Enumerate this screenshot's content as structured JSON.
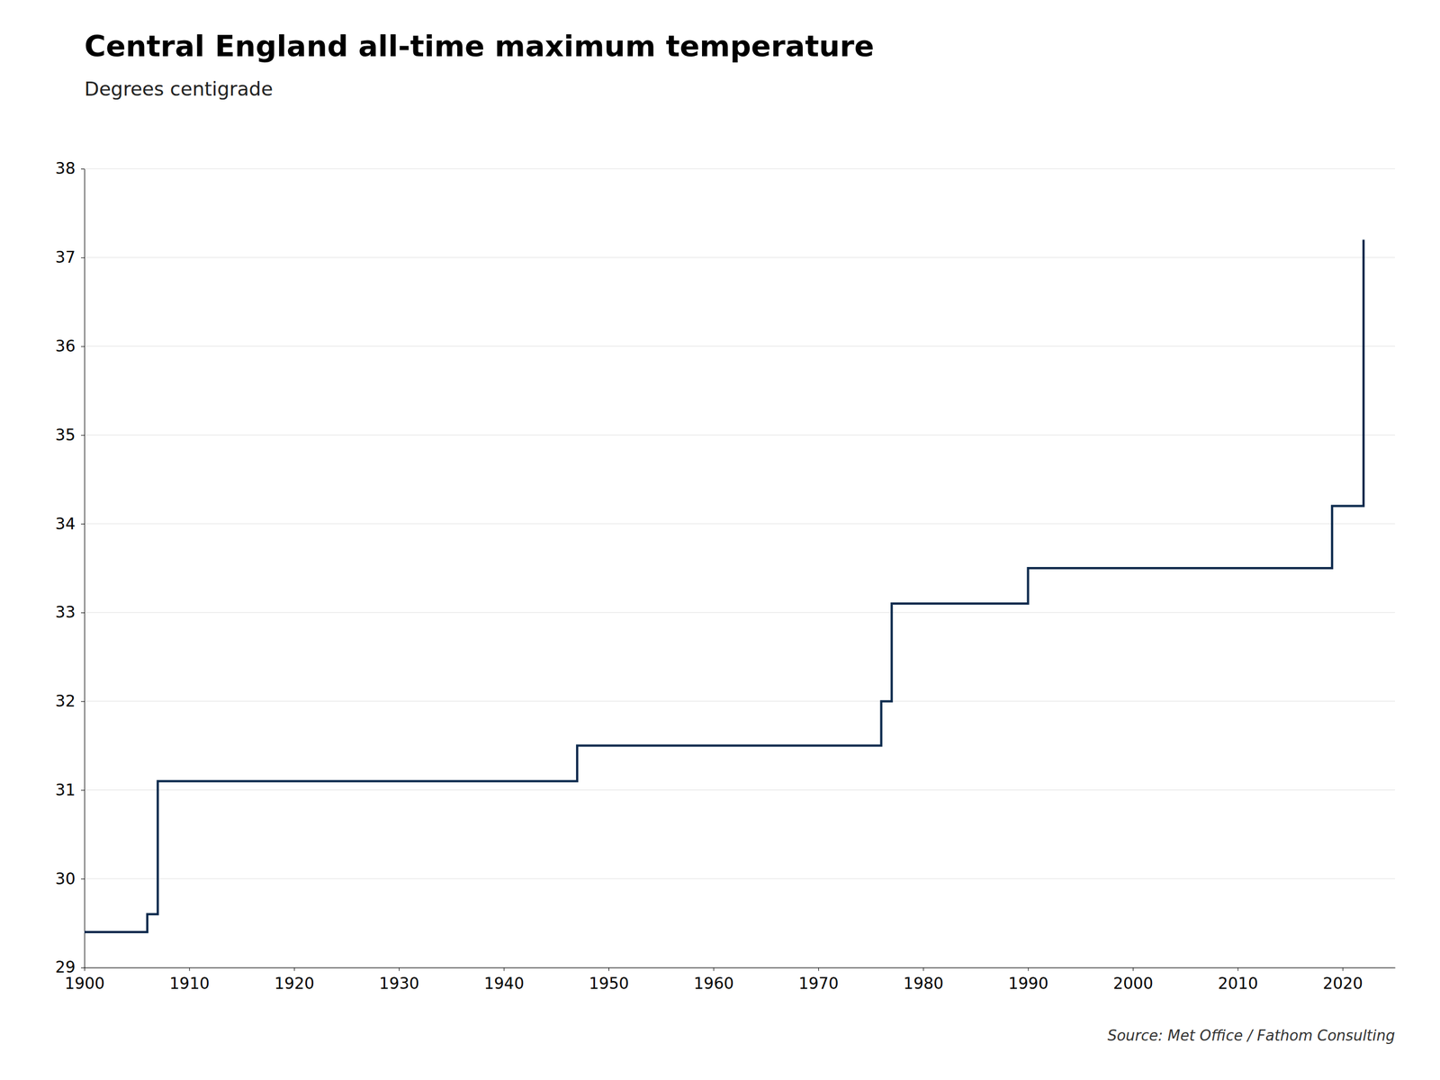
{
  "chart_data": {
    "type": "line",
    "title": "Central England all-time maximum temperature",
    "subtitle": "Degrees centigrade",
    "annotations": [
      "Source: Met Office / Fathom Consulting"
    ],
    "x": [
      1900,
      1906,
      1906,
      1907,
      1907,
      1947,
      1947,
      1976,
      1976,
      1977,
      1977,
      1990,
      1990,
      2019,
      2019,
      2022,
      2022
    ],
    "series": [
      {
        "color": "#0d2b4e",
        "values": [
          29.4,
          29.4,
          29.6,
          29.6,
          31.1,
          31.1,
          31.5,
          31.5,
          32.0,
          32.0,
          33.1,
          33.1,
          33.5,
          33.5,
          34.2,
          34.2,
          37.2
        ]
      }
    ],
    "xlim": [
      1900,
      2025
    ],
    "ylim": [
      29,
      38
    ],
    "xticks": [
      1900,
      1910,
      1920,
      1930,
      1940,
      1950,
      1960,
      1970,
      1980,
      1990,
      2000,
      2010,
      2020
    ],
    "yticks": [
      29,
      30,
      31,
      32,
      33,
      34,
      35,
      36,
      37,
      38
    ],
    "grid": true
  }
}
